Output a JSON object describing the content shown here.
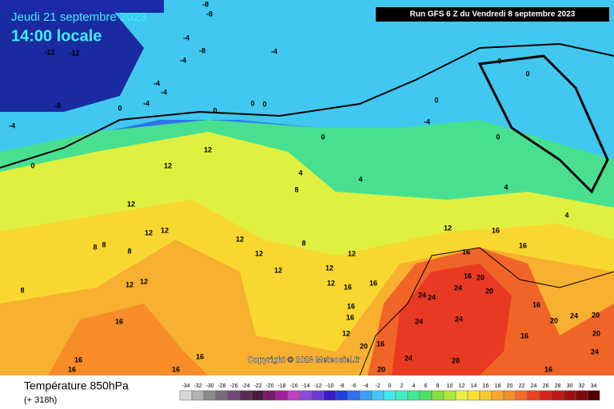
{
  "header": {
    "date": "Jeudi 21 septembre 2023",
    "time": "14:00 locale",
    "run": "Run GFS 6 Z du Vendredi 8 septembre 2023"
  },
  "copyright": "Copyright © 2023 Meteociel.fr",
  "footer": {
    "title": "Température 850hPa",
    "lead": "(+ 318h)"
  },
  "contour_labels": [
    -12,
    -12,
    -8,
    -8,
    -4,
    -8,
    -4,
    -8,
    -4,
    0,
    -4,
    -4,
    -4,
    0,
    0,
    0,
    -4,
    0,
    0,
    0,
    0,
    0,
    -4,
    0,
    4,
    8,
    4,
    4,
    4,
    12,
    12,
    12,
    12,
    12,
    12,
    12,
    12,
    8,
    8,
    8,
    8,
    8,
    12,
    12,
    12,
    12,
    12,
    16,
    16,
    16,
    16,
    12,
    12,
    16,
    16,
    16,
    16,
    20,
    24,
    20,
    24,
    24,
    24,
    24,
    16,
    20,
    24,
    20,
    20,
    16,
    20,
    16,
    16,
    16,
    16,
    16,
    16,
    24,
    20,
    16,
    20,
    24
  ],
  "scale": {
    "values": [
      -34,
      -32,
      -30,
      -28,
      -26,
      -24,
      -22,
      -20,
      -18,
      -16,
      -14,
      -12,
      -10,
      -8,
      -6,
      -4,
      -2,
      0,
      2,
      4,
      6,
      8,
      10,
      12,
      14,
      16,
      18,
      20,
      22,
      24,
      26,
      28,
      30,
      32,
      34
    ],
    "colors": [
      "#d7d7d7",
      "#b0b0b0",
      "#8a8a8a",
      "#7c6a7c",
      "#6e4a78",
      "#5a2a5a",
      "#4a1a40",
      "#7a1a6a",
      "#a0209a",
      "#c040c0",
      "#8a4ad8",
      "#6a3ad8",
      "#3a1ad0",
      "#2040e0",
      "#2f70f0",
      "#3aa0f8",
      "#40c8f8",
      "#40e8f0",
      "#40f0c0",
      "#40e890",
      "#50e060",
      "#80e040",
      "#b0e838",
      "#e8f040",
      "#f8e030",
      "#f8c828",
      "#f8a828",
      "#f88c28",
      "#f86828",
      "#f04020",
      "#e02020",
      "#c01818",
      "#a01010",
      "#800808",
      "#500000"
    ]
  }
}
